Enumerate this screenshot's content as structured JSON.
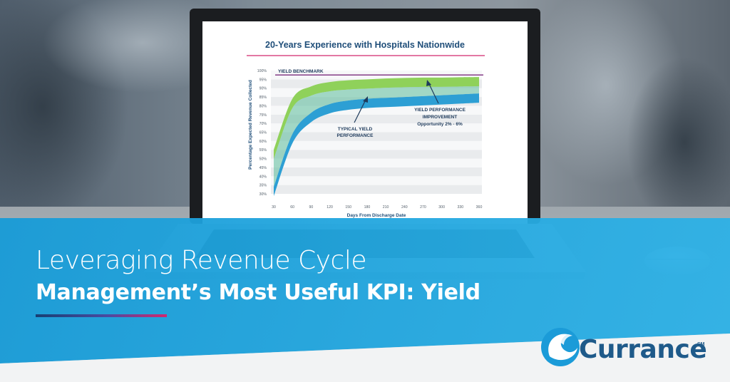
{
  "headline": {
    "line1": "Leveraging Revenue Cycle",
    "line2": "Management’s Most Useful KPI: Yield"
  },
  "brand": {
    "name": "Currance",
    "mark": "SM"
  },
  "colors": {
    "banner_blue": "#1fa3dc",
    "brand_navy": "#1f5a8a",
    "green_band": "#8fd15a",
    "teal_band": "#2d9fd4",
    "benchmark_line": "#7a2b7d",
    "accent_magenta": "#d2276e"
  },
  "chart_data": {
    "type": "area",
    "title": "20-Years Experience with Hospitals Nationwide",
    "xlabel": "Days From Discharge Date",
    "ylabel": "Percentage Expected Revenue Collected",
    "x": [
      30,
      60,
      90,
      120,
      150,
      180,
      210,
      240,
      270,
      300,
      330,
      360
    ],
    "xticks": [
      "30",
      "60",
      "90",
      "120",
      "150",
      "180",
      "210",
      "240",
      "270",
      "300",
      "330",
      "360"
    ],
    "yticks": [
      "100%",
      "95%",
      "90%",
      "85%",
      "80%",
      "75%",
      "70%",
      "65%",
      "60%",
      "55%",
      "50%",
      "45%",
      "40%",
      "35%",
      "30%"
    ],
    "ylim": [
      30,
      100
    ],
    "series": [
      {
        "values": [
          55,
          84,
          91,
          93.5,
          94.5,
          95,
          95.5,
          95.8,
          96,
          96,
          96.2,
          96.3
        ]
      },
      {
        "values": [
          34,
          64,
          76,
          81,
          83,
          84,
          84.5,
          85,
          85.5,
          86,
          86.5,
          87
        ]
      }
    ],
    "benchmark": {
      "label": "YIELD BENCHMARK",
      "value": 97.5
    },
    "annotations": [
      "TYPICAL YIELD",
      "PERFORMANCE",
      "YIELD PERFORMANCE",
      "IMPROVEMENT",
      "Opportunity 2% - 6%"
    ]
  }
}
